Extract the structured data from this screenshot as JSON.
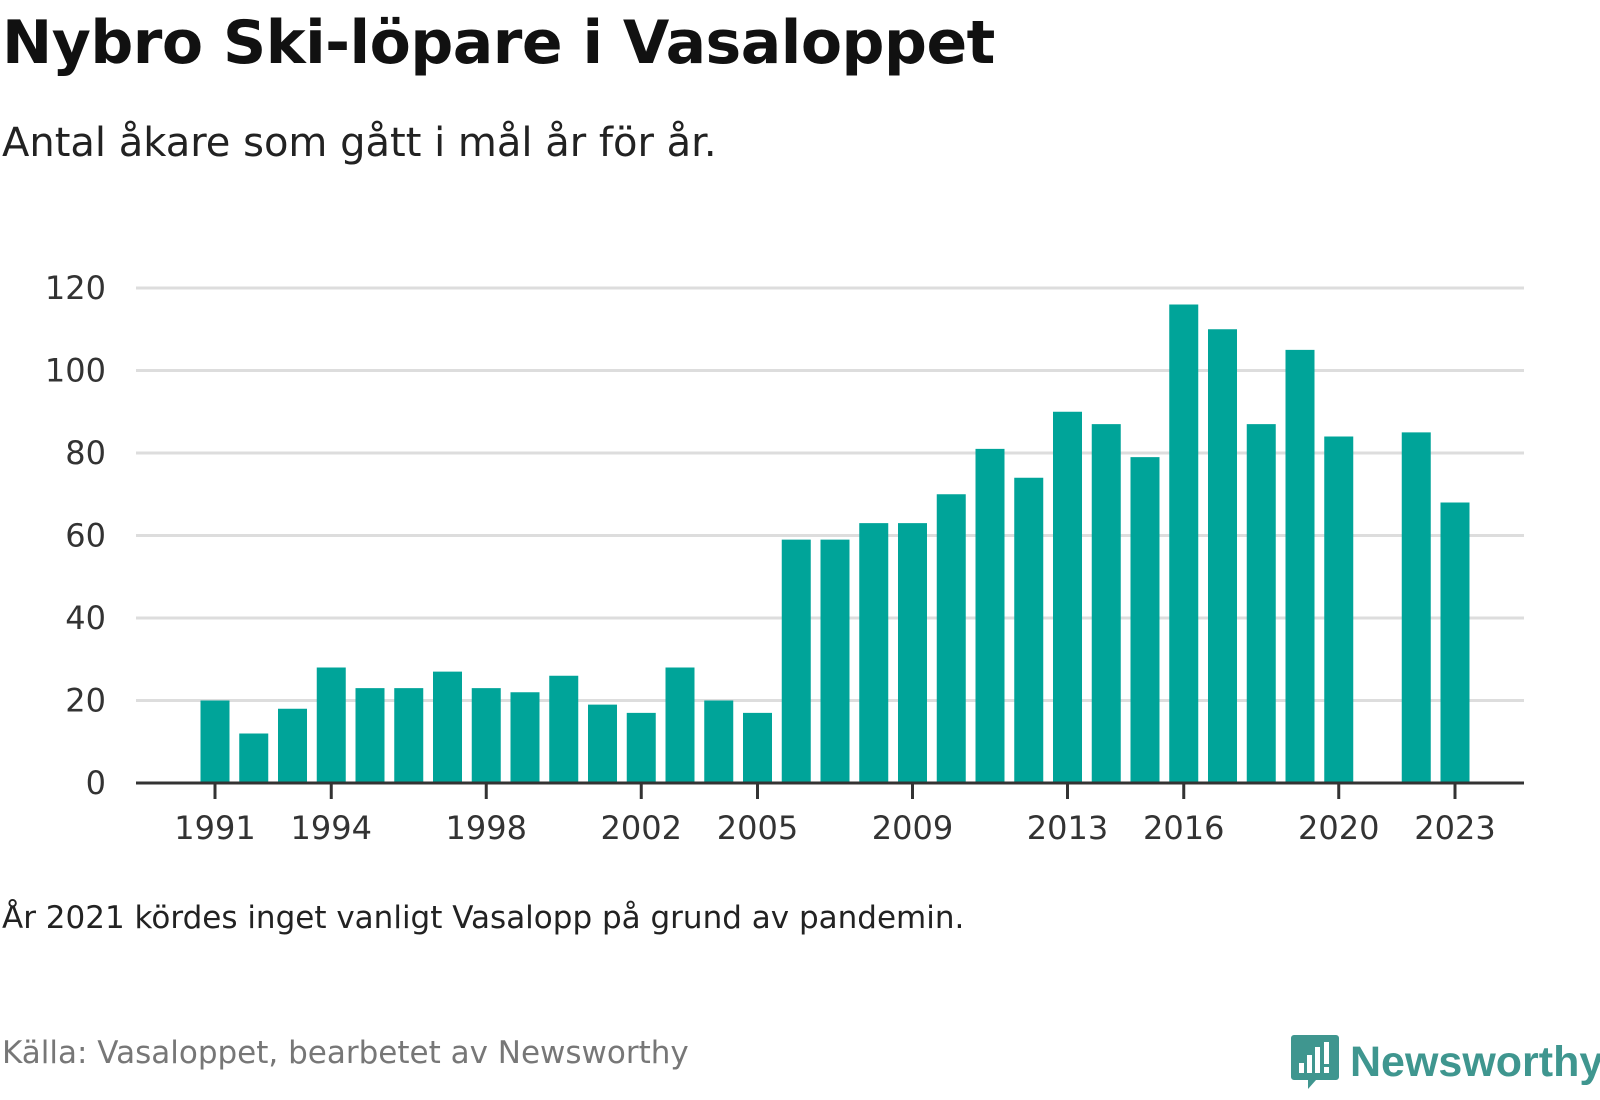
{
  "header": {
    "title": "Nybro Ski-löpare i Vasaloppet",
    "subtitle": "Antal åkare som gått i mål år för år."
  },
  "footer": {
    "note": "År 2021 kördes inget vanligt Vasalopp på grund av pandemin.",
    "source": "Källa: Vasaloppet, bearbetet av Newsworthy",
    "logo_text": "Newsworthy",
    "logo_icon": "newsworthy-logo-icon"
  },
  "colors": {
    "bar": "#00a499",
    "grid": "#dddddd",
    "axis": "#333333",
    "logo": "#3f968f"
  },
  "chart_data": {
    "type": "bar",
    "title": "Nybro Ski-löpare i Vasaloppet",
    "subtitle": "Antal åkare som gått i mål år för år.",
    "categories": [
      1991,
      1992,
      1993,
      1994,
      1995,
      1996,
      1997,
      1998,
      1999,
      2000,
      2001,
      2002,
      2003,
      2004,
      2005,
      2006,
      2007,
      2008,
      2009,
      2010,
      2011,
      2012,
      2013,
      2014,
      2015,
      2016,
      2017,
      2018,
      2019,
      2020,
      2021,
      2022,
      2023
    ],
    "values": [
      20,
      12,
      18,
      28,
      23,
      23,
      27,
      23,
      22,
      26,
      19,
      17,
      28,
      20,
      17,
      59,
      59,
      63,
      63,
      70,
      81,
      74,
      90,
      87,
      79,
      116,
      110,
      87,
      105,
      84,
      null,
      85,
      68
    ],
    "x_tick_labels": [
      1991,
      1994,
      1998,
      2002,
      2005,
      2009,
      2013,
      2016,
      2020,
      2023
    ],
    "y_ticks": [
      0,
      20,
      40,
      60,
      80,
      100,
      120
    ],
    "ylim": [
      0,
      120
    ],
    "xlabel": "",
    "ylabel": "",
    "grid": true,
    "legend": "none"
  }
}
